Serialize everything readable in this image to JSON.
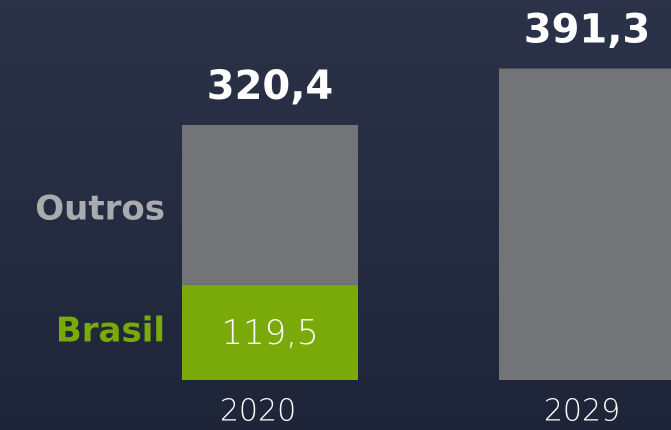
{
  "chart_data": {
    "type": "stacked_bar",
    "categories": [
      "2020",
      "2029"
    ],
    "series": [
      {
        "name": "Brasil",
        "color": "#7aaa0a",
        "values": [
          119.5,
          null
        ],
        "value_labels": [
          "119,5",
          null
        ]
      },
      {
        "name": "Outros",
        "color": "#737478",
        "values": [
          200.9,
          391.3
        ]
      }
    ],
    "total_labels": [
      "320,4",
      "391,3"
    ],
    "ylim": [
      0,
      400
    ]
  }
}
